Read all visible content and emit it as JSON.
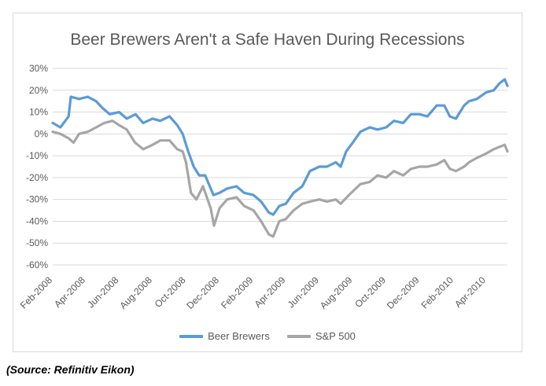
{
  "source": "(Source: Refinitiv Eikon)",
  "chart_data": {
    "type": "line",
    "title": "Beer Brewers Aren't a Safe Haven During Recessions",
    "xlabel": "",
    "ylabel": "",
    "ylim": [
      -0.6,
      0.3
    ],
    "yticks": [
      "30%",
      "20%",
      "10%",
      "0%",
      "-10%",
      "-20%",
      "-30%",
      "-40%",
      "-50%",
      "-60%"
    ],
    "yticks_values": [
      0.3,
      0.2,
      0.1,
      0,
      -0.1,
      -0.2,
      -0.3,
      -0.4,
      -0.5,
      -0.6
    ],
    "xticks": [
      "Feb-2008",
      "Apr-2008",
      "Jun-2008",
      "Aug-2008",
      "Oct-2008",
      "Dec-2008",
      "Feb-2009",
      "Apr-2009",
      "Jun-2009",
      "Aug-2009",
      "Oct-2009",
      "Dec-2009",
      "Feb-2010",
      "Apr-2010"
    ],
    "x_range": [
      "2008-02-01",
      "2010-05-10"
    ],
    "grid": "horizontal",
    "legend": "bottom",
    "series": [
      {
        "name": "Beer Brewers",
        "color": "#5b9bd5",
        "points": [
          [
            "2008-02-01",
            0.05
          ],
          [
            "2008-02-15",
            0.03
          ],
          [
            "2008-03-01",
            0.08
          ],
          [
            "2008-03-05",
            0.17
          ],
          [
            "2008-03-20",
            0.16
          ],
          [
            "2008-04-05",
            0.17
          ],
          [
            "2008-04-20",
            0.15
          ],
          [
            "2008-05-01",
            0.12
          ],
          [
            "2008-05-15",
            0.09
          ],
          [
            "2008-06-01",
            0.1
          ],
          [
            "2008-06-15",
            0.07
          ],
          [
            "2008-07-01",
            0.09
          ],
          [
            "2008-07-15",
            0.05
          ],
          [
            "2008-08-01",
            0.07
          ],
          [
            "2008-08-15",
            0.06
          ],
          [
            "2008-09-01",
            0.08
          ],
          [
            "2008-09-15",
            0.04
          ],
          [
            "2008-09-25",
            0.0
          ],
          [
            "2008-10-05",
            -0.08
          ],
          [
            "2008-10-15",
            -0.15
          ],
          [
            "2008-10-25",
            -0.19
          ],
          [
            "2008-11-05",
            -0.19
          ],
          [
            "2008-11-20",
            -0.28
          ],
          [
            "2008-12-01",
            -0.27
          ],
          [
            "2008-12-15",
            -0.25
          ],
          [
            "2009-01-01",
            -0.24
          ],
          [
            "2009-01-15",
            -0.27
          ],
          [
            "2009-02-01",
            -0.28
          ],
          [
            "2009-02-15",
            -0.31
          ],
          [
            "2009-03-01",
            -0.36
          ],
          [
            "2009-03-09",
            -0.37
          ],
          [
            "2009-03-20",
            -0.33
          ],
          [
            "2009-04-01",
            -0.32
          ],
          [
            "2009-04-15",
            -0.27
          ],
          [
            "2009-05-01",
            -0.24
          ],
          [
            "2009-05-15",
            -0.17
          ],
          [
            "2009-06-01",
            -0.15
          ],
          [
            "2009-06-15",
            -0.15
          ],
          [
            "2009-07-01",
            -0.13
          ],
          [
            "2009-07-10",
            -0.15
          ],
          [
            "2009-07-20",
            -0.08
          ],
          [
            "2009-08-01",
            -0.04
          ],
          [
            "2009-08-15",
            0.01
          ],
          [
            "2009-09-01",
            0.03
          ],
          [
            "2009-09-15",
            0.02
          ],
          [
            "2009-10-01",
            0.03
          ],
          [
            "2009-10-15",
            0.06
          ],
          [
            "2009-11-01",
            0.05
          ],
          [
            "2009-11-15",
            0.09
          ],
          [
            "2009-12-01",
            0.09
          ],
          [
            "2009-12-15",
            0.08
          ],
          [
            "2010-01-01",
            0.13
          ],
          [
            "2010-01-15",
            0.13
          ],
          [
            "2010-01-25",
            0.08
          ],
          [
            "2010-02-05",
            0.07
          ],
          [
            "2010-02-20",
            0.13
          ],
          [
            "2010-03-01",
            0.15
          ],
          [
            "2010-03-15",
            0.16
          ],
          [
            "2010-04-01",
            0.19
          ],
          [
            "2010-04-15",
            0.2
          ],
          [
            "2010-04-25",
            0.23
          ],
          [
            "2010-05-05",
            0.25
          ],
          [
            "2010-05-10",
            0.22
          ]
        ]
      },
      {
        "name": "S&P 500",
        "color": "#a6a6a6",
        "points": [
          [
            "2008-02-01",
            0.01
          ],
          [
            "2008-02-15",
            0.0
          ],
          [
            "2008-03-01",
            -0.02
          ],
          [
            "2008-03-10",
            -0.04
          ],
          [
            "2008-03-20",
            0.0
          ],
          [
            "2008-04-05",
            0.01
          ],
          [
            "2008-04-20",
            0.03
          ],
          [
            "2008-05-05",
            0.05
          ],
          [
            "2008-05-20",
            0.06
          ],
          [
            "2008-06-01",
            0.04
          ],
          [
            "2008-06-15",
            0.02
          ],
          [
            "2008-06-30",
            -0.04
          ],
          [
            "2008-07-15",
            -0.07
          ],
          [
            "2008-08-01",
            -0.05
          ],
          [
            "2008-08-15",
            -0.03
          ],
          [
            "2008-09-01",
            -0.03
          ],
          [
            "2008-09-15",
            -0.07
          ],
          [
            "2008-09-25",
            -0.08
          ],
          [
            "2008-10-01",
            -0.13
          ],
          [
            "2008-10-10",
            -0.27
          ],
          [
            "2008-10-20",
            -0.3
          ],
          [
            "2008-11-01",
            -0.24
          ],
          [
            "2008-11-15",
            -0.34
          ],
          [
            "2008-11-21",
            -0.42
          ],
          [
            "2008-12-01",
            -0.34
          ],
          [
            "2008-12-15",
            -0.3
          ],
          [
            "2009-01-01",
            -0.29
          ],
          [
            "2009-01-15",
            -0.33
          ],
          [
            "2009-02-01",
            -0.35
          ],
          [
            "2009-02-15",
            -0.4
          ],
          [
            "2009-03-01",
            -0.46
          ],
          [
            "2009-03-09",
            -0.47
          ],
          [
            "2009-03-20",
            -0.4
          ],
          [
            "2009-04-01",
            -0.39
          ],
          [
            "2009-04-15",
            -0.35
          ],
          [
            "2009-05-01",
            -0.32
          ],
          [
            "2009-05-15",
            -0.31
          ],
          [
            "2009-06-01",
            -0.3
          ],
          [
            "2009-06-15",
            -0.31
          ],
          [
            "2009-07-01",
            -0.3
          ],
          [
            "2009-07-10",
            -0.32
          ],
          [
            "2009-07-25",
            -0.28
          ],
          [
            "2009-08-15",
            -0.23
          ],
          [
            "2009-09-01",
            -0.22
          ],
          [
            "2009-09-15",
            -0.19
          ],
          [
            "2009-10-01",
            -0.2
          ],
          [
            "2009-10-15",
            -0.17
          ],
          [
            "2009-11-01",
            -0.19
          ],
          [
            "2009-11-15",
            -0.16
          ],
          [
            "2009-12-01",
            -0.15
          ],
          [
            "2009-12-15",
            -0.15
          ],
          [
            "2010-01-01",
            -0.14
          ],
          [
            "2010-01-15",
            -0.12
          ],
          [
            "2010-01-25",
            -0.16
          ],
          [
            "2010-02-05",
            -0.17
          ],
          [
            "2010-02-20",
            -0.15
          ],
          [
            "2010-03-01",
            -0.13
          ],
          [
            "2010-03-15",
            -0.11
          ],
          [
            "2010-04-01",
            -0.09
          ],
          [
            "2010-04-15",
            -0.07
          ],
          [
            "2010-04-25",
            -0.06
          ],
          [
            "2010-05-05",
            -0.05
          ],
          [
            "2010-05-10",
            -0.08
          ]
        ]
      }
    ]
  }
}
